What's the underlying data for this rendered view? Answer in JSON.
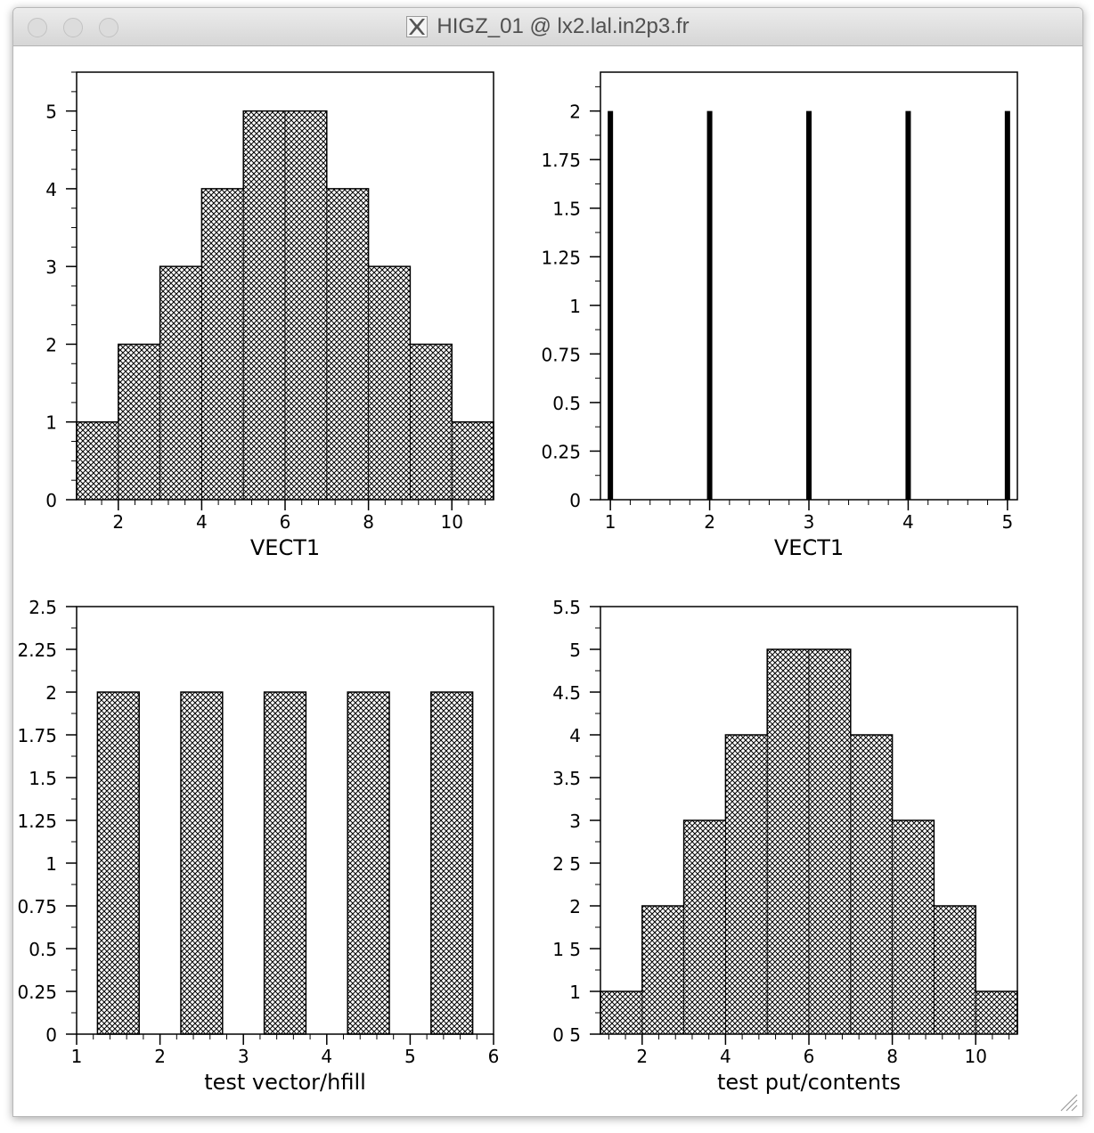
{
  "window": {
    "title": "HIGZ_01 @ lx2.lal.in2p3.fr"
  },
  "colors": {
    "ink": "#000000",
    "paper": "#ffffff"
  },
  "chart_data": [
    {
      "type": "bar",
      "style": "hatched-histogram",
      "bin_edges": [
        1,
        2,
        3,
        4,
        5,
        6,
        7,
        8,
        9,
        10,
        11
      ],
      "values": [
        1,
        2,
        3,
        4,
        5,
        5,
        4,
        3,
        2,
        1
      ],
      "xlim": [
        1,
        11
      ],
      "ylim": [
        0,
        5.5
      ],
      "xticks": [
        2,
        4,
        6,
        8,
        10
      ],
      "xtick_labels": [
        "2",
        "4",
        "6",
        "8",
        "10"
      ],
      "yticks": [
        0,
        1,
        2,
        3,
        4,
        5
      ],
      "ytick_labels": [
        "0",
        "1",
        "2",
        "3",
        "4",
        "5"
      ],
      "xlabel": "VECT1"
    },
    {
      "type": "bar",
      "style": "thick-lines",
      "x": [
        1,
        2,
        3,
        4,
        5
      ],
      "values": [
        2,
        2,
        2,
        2,
        2
      ],
      "xlim": [
        0.9,
        5.1
      ],
      "ylim": [
        0,
        2.2
      ],
      "xticks": [
        1,
        2,
        3,
        4,
        5
      ],
      "xtick_labels": [
        "1",
        "2",
        "3",
        "4",
        "5"
      ],
      "yticks": [
        0,
        0.25,
        0.5,
        0.75,
        1,
        1.25,
        1.5,
        1.75,
        2
      ],
      "ytick_labels": [
        "0",
        "0.25",
        "0.5",
        "0.75",
        "1",
        "1.25",
        "1.5",
        "1.75",
        "2"
      ],
      "xlabel": "VECT1"
    },
    {
      "type": "bar",
      "style": "hatched-bars",
      "bars": [
        {
          "x0": 1.25,
          "x1": 1.75,
          "value": 2
        },
        {
          "x0": 2.25,
          "x1": 2.75,
          "value": 2
        },
        {
          "x0": 3.25,
          "x1": 3.75,
          "value": 2
        },
        {
          "x0": 4.25,
          "x1": 4.75,
          "value": 2
        },
        {
          "x0": 5.25,
          "x1": 5.75,
          "value": 2
        }
      ],
      "xlim": [
        1,
        6
      ],
      "ylim": [
        0,
        2.5
      ],
      "xticks": [
        1,
        2,
        3,
        4,
        5,
        6
      ],
      "xtick_labels": [
        "1",
        "2",
        "3",
        "4",
        "5",
        "6"
      ],
      "yticks": [
        0,
        0.25,
        0.5,
        0.75,
        1,
        1.25,
        1.5,
        1.75,
        2,
        2.25,
        2.5
      ],
      "ytick_labels": [
        "0",
        "0.25",
        "0.5",
        "0.75",
        "1",
        "1.25",
        "1.5",
        "1.75",
        "2",
        "2.25",
        "2.5"
      ],
      "xlabel": "test vector/hfill"
    },
    {
      "type": "bar",
      "style": "hatched-histogram",
      "bin_edges": [
        1,
        2,
        3,
        4,
        5,
        6,
        7,
        8,
        9,
        10,
        11
      ],
      "values": [
        1,
        2,
        3,
        4,
        5,
        5,
        4,
        3,
        2,
        1
      ],
      "xlim": [
        1,
        11
      ],
      "ylim": [
        0.5,
        5.5
      ],
      "xticks": [
        2,
        4,
        6,
        8,
        10
      ],
      "xtick_labels": [
        "2",
        "4",
        "6",
        "8",
        "10"
      ],
      "yticks": [
        0.5,
        1,
        1.5,
        2,
        2.5,
        3,
        3.5,
        4,
        4.5,
        5,
        5.5
      ],
      "ytick_labels": [
        "0 5",
        "1",
        "1 5",
        "2",
        "2 5",
        "3",
        "3.5",
        "4",
        "4.5",
        "5",
        "5.5"
      ],
      "xlabel": "test put/contents"
    }
  ]
}
